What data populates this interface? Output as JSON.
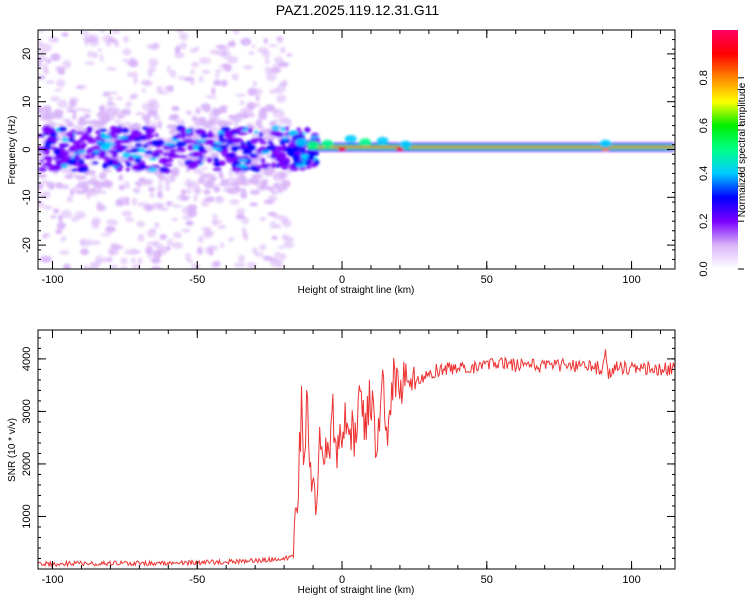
{
  "figure": {
    "title": "PAZ1.2025.119.12.31.G11"
  },
  "chart_data": [
    {
      "type": "heatmap",
      "xlabel": "Height of straight line (km)",
      "ylabel": "Frequency (Hz)",
      "xlim": [
        -105,
        115
      ],
      "ylim": [
        -25,
        25
      ],
      "xticks": [
        -100,
        -50,
        0,
        50,
        100
      ],
      "yticks": [
        -20,
        -10,
        0,
        10,
        20
      ],
      "colorbar": {
        "label": "Normalized spectral amplitude",
        "range": [
          0,
          1
        ],
        "ticks": [
          "0.0",
          "0.2",
          "0.4",
          "0.6",
          "0.8"
        ],
        "colormap": [
          "#ffffff",
          "#d8b4f8",
          "#7b00ff",
          "#0000ff",
          "#00ccff",
          "#00ff88",
          "#00ee00",
          "#ffff00",
          "#ff8800",
          "#ff0000",
          "#ff0066"
        ]
      },
      "features": {
        "noise_region_x": [
          -105,
          -18
        ],
        "noise_spread_hz": [
          -25,
          25
        ],
        "main_band_frequency_hz": 0.5,
        "tone_region_x": [
          -12,
          115
        ]
      }
    },
    {
      "type": "line",
      "xlabel": "Height of straight line (km)",
      "ylabel": "SNR (10 * v/v)",
      "xlim": [
        -105,
        115
      ],
      "ylim": [
        0,
        4550
      ],
      "xticks": [
        -100,
        -50,
        0,
        50,
        100
      ],
      "yticks": [
        1000,
        2000,
        3000,
        4000
      ],
      "series": [
        {
          "color": "#ee3333",
          "x": [
            -105,
            -95,
            -85,
            -75,
            -65,
            -55,
            -45,
            -35,
            -25,
            -20,
            -17,
            -15,
            -14,
            -13,
            -12,
            -11,
            -10,
            -9,
            -8,
            -7,
            -6,
            -5,
            -4,
            -3,
            -2,
            -1,
            0,
            2,
            4,
            6,
            8,
            10,
            12,
            14,
            16,
            18,
            20,
            22,
            24,
            26,
            28,
            30,
            35,
            40,
            45,
            50,
            55,
            60,
            65,
            70,
            75,
            80,
            85,
            90,
            91,
            92,
            95,
            100,
            105,
            110,
            115
          ],
          "y": [
            100,
            100,
            110,
            105,
            110,
            115,
            130,
            140,
            180,
            200,
            220,
            1800,
            3100,
            2000,
            3400,
            1500,
            2200,
            900,
            2600,
            2500,
            1900,
            2700,
            2400,
            3000,
            2200,
            2500,
            2700,
            2900,
            2500,
            3200,
            2800,
            3300,
            2100,
            3500,
            2400,
            3700,
            3200,
            3900,
            3400,
            3600,
            3650,
            3750,
            3800,
            3850,
            3820,
            3870,
            3900,
            3880,
            3900,
            3850,
            3880,
            3870,
            3880,
            3800,
            4200,
            3700,
            3850,
            3820,
            3830,
            3800,
            3820
          ]
        }
      ]
    }
  ]
}
